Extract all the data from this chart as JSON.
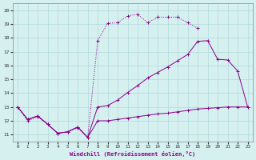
{
  "xlabel": "Windchill (Refroidissement éolien,°C)",
  "background_color": "#d6f0f0",
  "grid_color": "#b0d8d8",
  "line_color": "#880088",
  "xlim": [
    -0.5,
    23.5
  ],
  "ylim": [
    10.5,
    20.5
  ],
  "xticks": [
    0,
    1,
    2,
    3,
    4,
    5,
    6,
    7,
    8,
    9,
    10,
    11,
    12,
    13,
    14,
    15,
    16,
    17,
    18,
    19,
    20,
    21,
    22,
    23
  ],
  "yticks": [
    11,
    12,
    13,
    14,
    15,
    16,
    17,
    18,
    19,
    20
  ],
  "line1_x": [
    0,
    1,
    2,
    3,
    4,
    5,
    6,
    7,
    8,
    9,
    10,
    11,
    12,
    13,
    14,
    15,
    16,
    17,
    18
  ],
  "line1_y": [
    13,
    12.0,
    12.3,
    11.75,
    11.1,
    11.2,
    11.5,
    10.8,
    17.8,
    19.05,
    19.1,
    19.6,
    19.7,
    19.1,
    19.5,
    19.5,
    19.5,
    19.1,
    18.7
  ],
  "line2_x": [
    0,
    1,
    2,
    3,
    4,
    5,
    6,
    7,
    8,
    9,
    10,
    11,
    12,
    13,
    14,
    15,
    16,
    17,
    18,
    19,
    20,
    21,
    22,
    23
  ],
  "line2_y": [
    13,
    12.1,
    12.35,
    11.75,
    11.1,
    11.2,
    11.55,
    10.8,
    13.0,
    13.1,
    13.5,
    14.05,
    14.55,
    15.1,
    15.5,
    15.9,
    16.35,
    16.8,
    17.75,
    17.8,
    16.45,
    16.4,
    15.6,
    13.0
  ],
  "line3_x": [
    0,
    1,
    2,
    3,
    4,
    5,
    6,
    7,
    8,
    9,
    10,
    11,
    12,
    13,
    14,
    15,
    16,
    17,
    18,
    19,
    20,
    21,
    22,
    23
  ],
  "line3_y": [
    13,
    12.1,
    12.35,
    11.75,
    11.1,
    11.2,
    11.55,
    10.8,
    12.0,
    12.0,
    12.1,
    12.2,
    12.3,
    12.4,
    12.5,
    12.55,
    12.65,
    12.75,
    12.85,
    12.9,
    12.95,
    13.0,
    13.0,
    13.0
  ]
}
